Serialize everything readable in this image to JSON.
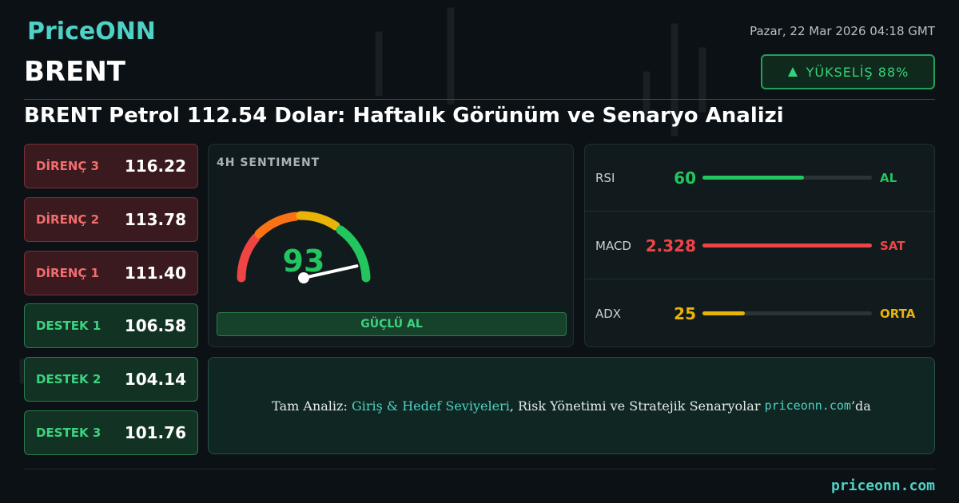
{
  "header": {
    "brand": "PriceONN",
    "datetime": "Pazar, 22 Mar 2026 04:18 GMT",
    "symbol": "BRENT",
    "badge": "YÜKSELİŞ 88%",
    "title": "BRENT Petrol 112.54 Dolar: Haftalık Görünüm ve Senaryo Analizi"
  },
  "levels": [
    {
      "label": "DİRENÇ 3",
      "value": "116.22",
      "kind": "resistance"
    },
    {
      "label": "DİRENÇ 2",
      "value": "113.78",
      "kind": "resistance"
    },
    {
      "label": "DİRENÇ 1",
      "value": "111.40",
      "kind": "resistance"
    },
    {
      "label": "DESTEK 1",
      "value": "106.58",
      "kind": "support"
    },
    {
      "label": "DESTEK 2",
      "value": "104.14",
      "kind": "support"
    },
    {
      "label": "DESTEK 3",
      "value": "101.76",
      "kind": "support"
    }
  ],
  "sentiment": {
    "title": "4H SENTIMENT",
    "value": 93,
    "range": [
      0,
      100
    ],
    "signal": "GÜÇLÜ AL"
  },
  "indicators": [
    {
      "name": "RSI",
      "value": 60,
      "signal": "AL",
      "color": "#22c55e",
      "range": [
        0,
        100
      ]
    },
    {
      "name": "MACD",
      "value": 2.328,
      "signal": "SAT",
      "color": "#ef4444"
    },
    {
      "name": "ADX",
      "value": 25,
      "signal": "ORTA",
      "color": "#eab308",
      "range": [
        0,
        100
      ]
    }
  ],
  "cta": {
    "prefix": "Tam Analiz: ",
    "link": "Giriş & Hedef Seviyeleri",
    "middle": ", Risk Yönetimi ve Stratejik Senaryolar ",
    "site": "priceonn.com",
    "suffix": "’da"
  },
  "footer": {
    "site": "priceonn.com"
  }
}
